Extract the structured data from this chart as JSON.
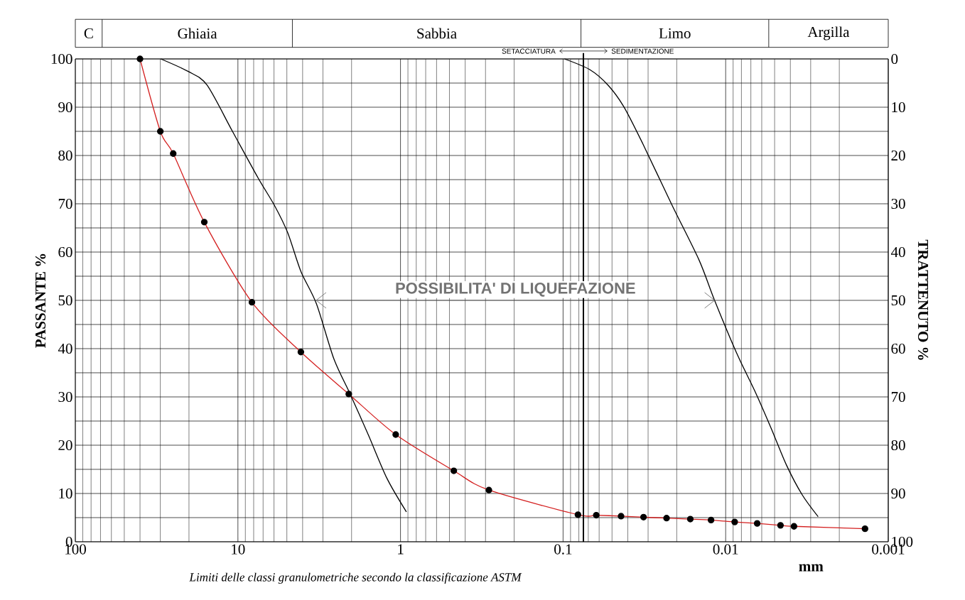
{
  "chart_data": {
    "type": "line",
    "xlabel": "mm",
    "ylabel": "PASSANTE %",
    "y2label": "TRATTENUTO %",
    "log": "x",
    "xlim": [
      100,
      0.001
    ],
    "xticks": [
      100,
      10,
      1,
      0.1,
      0.01,
      0.001
    ],
    "ylim": [
      0,
      100
    ],
    "yticks": [
      0,
      {
        "value": 5,
        "label": null
      },
      10,
      {
        "value": 15,
        "label": null
      },
      20,
      {
        "value": 25,
        "label": null
      },
      30,
      {
        "value": 35,
        "label": null
      },
      40,
      {
        "value": 45,
        "label": null
      },
      50,
      {
        "value": 55,
        "label": null
      },
      60,
      {
        "value": 65,
        "label": null
      },
      70,
      {
        "value": 75,
        "label": null
      },
      80,
      {
        "value": 85,
        "label": null
      },
      90,
      {
        "value": 95,
        "label": null
      },
      100
    ],
    "y2lim": [
      100,
      0
    ],
    "y2ticks": [
      0,
      10,
      20,
      30,
      40,
      50,
      60,
      70,
      80,
      90,
      100
    ],
    "grid": true,
    "series": [
      {
        "color": "#d42020",
        "marker": "circle",
        "x": [
          40,
          30,
          25,
          16.1,
          8.2,
          4.1,
          2.08,
          1.07,
          0.47,
          0.286,
          0.081,
          0.0625,
          0.044,
          0.032,
          0.0231,
          0.0165,
          0.0123,
          0.0088,
          0.0064,
          0.0046,
          0.0038,
          0.00139
        ],
        "values": [
          100,
          85,
          80.4,
          66.2,
          49.6,
          39.3,
          30.6,
          22.2,
          14.7,
          10.7,
          5.6,
          5.5,
          5.3,
          5.1,
          4.9,
          4.7,
          4.5,
          4.1,
          3.8,
          3.4,
          3.2,
          2.7
        ]
      },
      {
        "color": "#000000",
        "marker": "none",
        "x": [
          29.8,
          20.2,
          15.5,
          10.8,
          7.5,
          5.97,
          4.94,
          4.1,
          3.29,
          2.57,
          2.04,
          1.58,
          1.21,
          0.92
        ],
        "values": [
          100,
          97.4,
          94.6,
          85,
          75.3,
          69.7,
          64,
          56,
          49.3,
          37.9,
          30.6,
          22.2,
          13.1,
          6.2
        ]
      },
      {
        "color": "#737373",
        "marker": "none",
        "x": [
          3.3,
          0.0117
        ],
        "values": [
          50,
          50
        ]
      },
      {
        "color": "#000000",
        "marker": "none",
        "x": [
          0.098,
          0.0686,
          0.053,
          0.0423,
          0.0324,
          0.0215,
          0.0146,
          0.0117,
          0.00857,
          0.00657,
          0.00525,
          0.00423,
          0.00338,
          0.0027
        ],
        "values": [
          100,
          97.8,
          94.6,
          90.1,
          82.5,
          69.9,
          58.4,
          50,
          39.1,
          31,
          23.5,
          15.9,
          9.7,
          5.2
        ]
      }
    ],
    "ref_lines": [
      {
        "axis": "x",
        "value": 0.075
      }
    ],
    "annotations": [
      "POSSIBILITA' DI LIQUEFAZIONE",
      "SETACCIATURA",
      "SEDIMENTAZIONE",
      "Limiti delle classi granulometriche secondo la classificazione ASTM",
      "C",
      "Ghiaia",
      "Sabbia",
      "Limo",
      "Argilla"
    ]
  }
}
